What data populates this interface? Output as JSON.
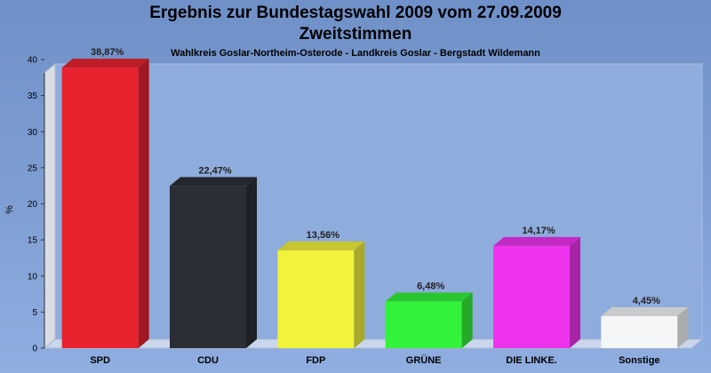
{
  "chart_data": {
    "type": "bar",
    "title": "Ergebnis zur Bundestagswahl 2009 vom 27.09.2009",
    "subtitle_main": "Zweitstimmen",
    "subtitle": "Wahlkreis Goslar-Northeim-Osterode - Landkreis Goslar - Bergstadt Wildemann",
    "xlabel": "",
    "ylabel": "%",
    "ylim": [
      0,
      40
    ],
    "yticks": [
      "0",
      "5",
      "10",
      "15",
      "20",
      "25",
      "30",
      "35",
      "40"
    ],
    "grid": false,
    "legend": "none",
    "categories": [
      "SPD",
      "CDU",
      "FDP",
      "GRÜNE",
      "DIE LINKE.",
      "Sonstige"
    ],
    "values": [
      38.87,
      22.47,
      13.56,
      6.48,
      14.17,
      4.45
    ],
    "value_labels": [
      "38,87%",
      "22,47%",
      "13,56%",
      "6,48%",
      "14,17%",
      "4,45%"
    ],
    "colors": [
      "#e8222e",
      "#2b2e35",
      "#f2f23a",
      "#33f23a",
      "#ee33ee",
      "#f4f6f8"
    ]
  }
}
